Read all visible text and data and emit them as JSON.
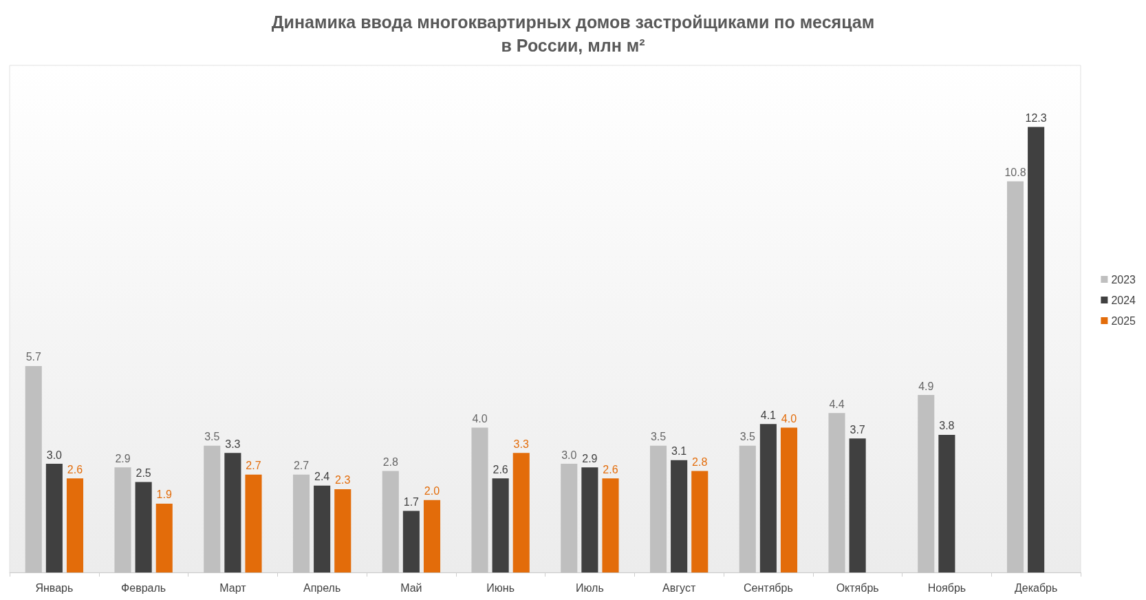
{
  "chart_data": {
    "type": "bar",
    "title": "Динамика ввода многоквартирных домов застройщиками по месяцам\nв России, млн м²",
    "categories": [
      "Январь",
      "Февраль",
      "Март",
      "Апрель",
      "Май",
      "Июнь",
      "Июль",
      "Август",
      "Сентябрь",
      "Октябрь",
      "Ноябрь",
      "Декабрь"
    ],
    "series": [
      {
        "name": "2023",
        "color": "#bfbfbf",
        "values": [
          5.7,
          2.9,
          3.5,
          2.7,
          2.8,
          4.0,
          3.0,
          3.5,
          3.5,
          4.4,
          4.9,
          10.8
        ],
        "value_labels": [
          "5.7",
          "2.9",
          "3.5",
          "2.7",
          "2.8",
          "4.0",
          "3.0",
          "3.5",
          "3.5",
          "4.4",
          "4.9",
          "10.8"
        ]
      },
      {
        "name": "2024",
        "color": "#404040",
        "values": [
          3.0,
          2.5,
          3.3,
          2.4,
          1.7,
          2.6,
          2.9,
          3.1,
          4.1,
          3.7,
          3.8,
          12.3
        ],
        "value_labels": [
          "3.0",
          "2.5",
          "3.3",
          "2.4",
          "1.7",
          "2.6",
          "2.9",
          "3.1",
          "4.1",
          "3.7",
          "3.8",
          "12.3"
        ]
      },
      {
        "name": "2025",
        "color": "#e36c0a",
        "values": [
          2.6,
          1.9,
          2.7,
          2.3,
          2.0,
          3.3,
          2.6,
          2.8,
          4.0,
          null,
          null,
          null
        ],
        "value_labels": [
          "2.6",
          "1.9",
          "2.7",
          "2.3",
          "2.0",
          "3.3",
          "2.6",
          "2.8",
          "4.0",
          null,
          null,
          null
        ]
      }
    ],
    "legend": "right"
  }
}
